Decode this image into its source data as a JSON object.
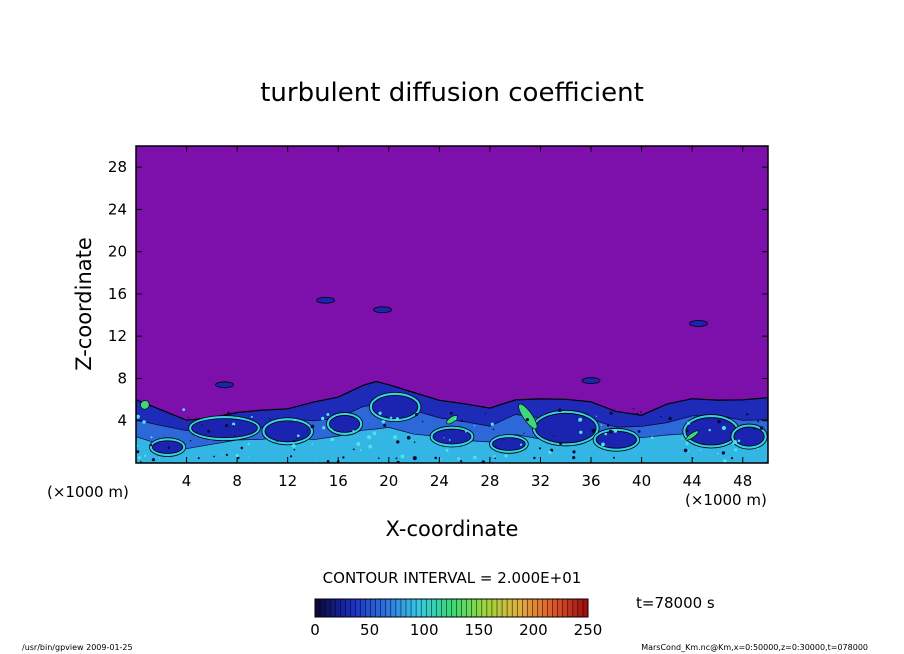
{
  "chart_data": {
    "type": "heatmap",
    "title": "turbulent diffusion coefficient",
    "xlabel": "X-coordinate",
    "ylabel": "Z-coordinate",
    "x_unit": "(×1000 m)",
    "y_unit": "(×1000 m)",
    "xlim": [
      0,
      50
    ],
    "ylim": [
      0,
      30
    ],
    "x_ticks": [
      4,
      8,
      12,
      16,
      20,
      24,
      28,
      32,
      36,
      40,
      44,
      48
    ],
    "y_ticks": [
      4,
      8,
      12,
      16,
      20,
      24,
      28
    ],
    "contour_interval": "CONTOUR INTERVAL = 2.000E+01",
    "time_label": "t=78000 s",
    "colorbar": {
      "min": 0,
      "max": 250,
      "ticks": [
        0,
        50,
        100,
        150,
        200,
        250
      ],
      "colors": [
        "#0c0a3a",
        "#1b2cc0",
        "#2e6fe0",
        "#35c8e8",
        "#39d97a",
        "#9ad83a",
        "#e0b040",
        "#e05a2a",
        "#a01010"
      ]
    },
    "background_color": "#7d0fab",
    "notable_features": [
      {
        "x": 7,
        "z": 7.4
      },
      {
        "x": 36,
        "z": 7.8
      },
      {
        "x": 44.5,
        "z": 13.2
      },
      {
        "x": 19.5,
        "z": 14.5
      },
      {
        "x": 15,
        "z": 15.4
      }
    ],
    "turbulent_layer_top": [
      [
        0,
        6.0
      ],
      [
        2,
        5.0
      ],
      [
        4,
        4.2
      ],
      [
        6,
        4.4
      ],
      [
        8,
        4.8
      ],
      [
        10,
        5.0
      ],
      [
        12,
        5.3
      ],
      [
        14,
        5.6
      ],
      [
        16,
        6.2
      ],
      [
        18,
        7.4
      ],
      [
        19,
        7.8
      ],
      [
        20,
        7.3
      ],
      [
        22,
        6.6
      ],
      [
        24,
        6.1
      ],
      [
        26,
        5.6
      ],
      [
        28,
        5.3
      ],
      [
        30,
        5.9
      ],
      [
        32,
        6.2
      ],
      [
        34,
        6.0
      ],
      [
        36,
        5.8
      ],
      [
        38,
        5.0
      ],
      [
        40,
        4.7
      ],
      [
        42,
        5.4
      ],
      [
        44,
        5.9
      ],
      [
        46,
        6.1
      ],
      [
        48,
        6.0
      ],
      [
        50,
        6.0
      ]
    ]
  },
  "footer": {
    "left": "/usr/bin/gpview  2009-01-25",
    "right": "MarsCond_Km.nc@Km,x=0:50000,z=0:30000,t=078000"
  }
}
